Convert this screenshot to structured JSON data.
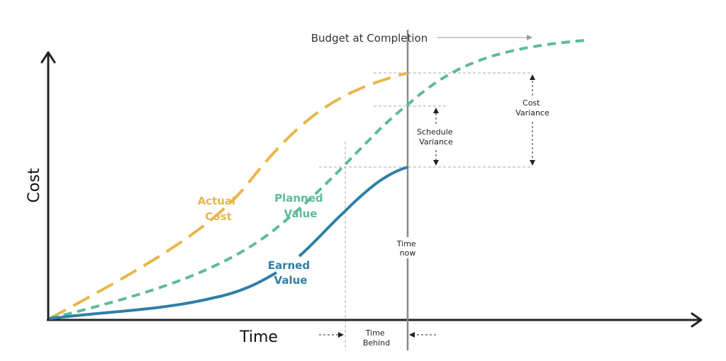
{
  "axes": {
    "x_label": "Time",
    "y_label": "Cost"
  },
  "curves": {
    "actual_cost": {
      "label_lines": [
        "Actual",
        "Cost"
      ],
      "color": "#E8B64C",
      "line_style": "long-dash"
    },
    "planned_value": {
      "label_lines": [
        "Planned",
        "Value"
      ],
      "color": "#5DBA9D",
      "line_style": "short-dash"
    },
    "earned_value": {
      "label_lines": [
        "Earned",
        "Value"
      ],
      "color": "#2F7FA6",
      "line_style": "solid"
    }
  },
  "annotations": {
    "budget_at_completion": "Budget at Completion",
    "time_now": [
      "Time",
      "now"
    ],
    "time_behind": [
      "Time",
      "Behind"
    ],
    "schedule_variance": [
      "Schedule",
      "Variance"
    ],
    "cost_variance": [
      "Cost",
      "Variance"
    ]
  },
  "colors": {
    "axis": "#222222",
    "time_now_line": "#888888",
    "guide_line": "#aaaaaa",
    "arrow": "#222222"
  }
}
